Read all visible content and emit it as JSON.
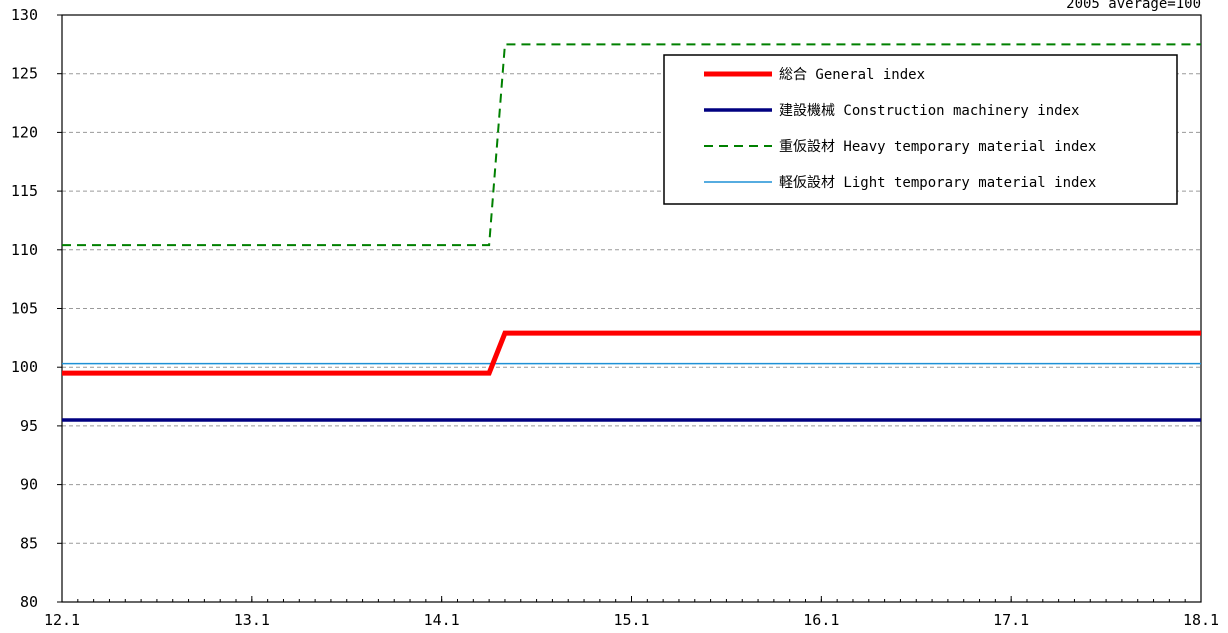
{
  "chart_data": {
    "type": "line",
    "note": "2005 average=100",
    "x_tick_labels": [
      "12.1",
      "13.1",
      "14.1",
      "15.1",
      "16.1",
      "17.1",
      "18.1"
    ],
    "y_tick_labels": [
      "80",
      "85",
      "90",
      "95",
      "100",
      "105",
      "110",
      "115",
      "120",
      "125",
      "130"
    ],
    "ylim": [
      80,
      130
    ],
    "xlim": [
      "12.1",
      "18.1"
    ],
    "grid": "horizontal dashed",
    "legend_position": "top-right",
    "series": [
      {
        "name": "総合 General index",
        "color": "#ff0000",
        "style": "solid-thick",
        "points": [
          [
            "12.1",
            99.5
          ],
          [
            "14.4",
            99.5
          ],
          [
            "14.5",
            102.9
          ],
          [
            "18.1",
            102.9
          ]
        ]
      },
      {
        "name": "建設機械 Construction machinery index",
        "color": "#000080",
        "style": "solid",
        "points": [
          [
            "12.1",
            95.5
          ],
          [
            "18.1",
            95.5
          ]
        ]
      },
      {
        "name": "重仮設材 Heavy temporary material index",
        "color": "#008000",
        "style": "dashed",
        "points": [
          [
            "12.1",
            110.4
          ],
          [
            "14.4",
            110.4
          ],
          [
            "14.5",
            127.5
          ],
          [
            "18.1",
            127.5
          ]
        ]
      },
      {
        "name": "軽仮設材 Light temporary material index",
        "color": "#1e90d6",
        "style": "solid-thin",
        "points": [
          [
            "12.1",
            100.3
          ],
          [
            "18.1",
            100.3
          ]
        ]
      }
    ]
  }
}
